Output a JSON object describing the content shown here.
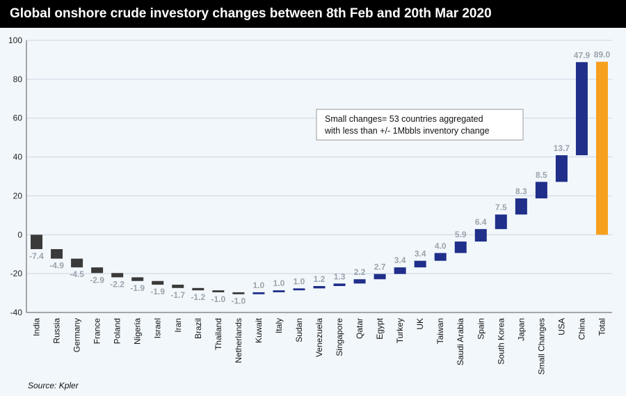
{
  "title": "Global onshore crude investory changes between 8th Feb and 20th Mar 2020",
  "source": "Source: Kpler",
  "chart_data": {
    "type": "waterfall",
    "title": "Global onshore crude investory changes between 8th Feb and 20th Mar 2020",
    "ylim": [
      -40,
      100
    ],
    "yticks": [
      -40,
      -20,
      0,
      20,
      40,
      60,
      80,
      100
    ],
    "grid": true,
    "categories": [
      "India",
      "Russia",
      "Germany",
      "France",
      "Poland",
      "Nigeria",
      "Israel",
      "Iran",
      "Brazil",
      "Thailand",
      "Netherlands",
      "Kuwait",
      "Italy",
      "Sudan",
      "Venezuela",
      "Singapore",
      "Qatar",
      "Egypt",
      "Turkey",
      "UK",
      "Taiwan",
      "Saudi Arabia",
      "Spain",
      "South Korea",
      "Japan",
      "Small Changes",
      "USA",
      "China",
      "Total"
    ],
    "values": [
      -7.4,
      -4.9,
      -4.5,
      -2.9,
      -2.2,
      -1.9,
      -1.9,
      -1.7,
      -1.2,
      -1.0,
      -1.0,
      1.0,
      1.0,
      1.0,
      1.2,
      1.3,
      2.2,
      2.7,
      3.4,
      3.4,
      4.0,
      5.9,
      6.4,
      7.5,
      8.3,
      8.5,
      13.7,
      47.9,
      89.0
    ],
    "value_labels": [
      "-7.4",
      "-4.9",
      "-4.5",
      "-2.9",
      "-2.2",
      "-1.9",
      "-1.9",
      "-1.7",
      "-1.2",
      "-1.0",
      "-1.0",
      "1.0",
      "1.0",
      "1.0",
      "1.2",
      "1.3",
      "2.2",
      "2.7",
      "3.4",
      "3.4",
      "4.0",
      "5.9",
      "6.4",
      "7.5",
      "8.3",
      "8.5",
      "13.7",
      "47.9",
      "89.0"
    ],
    "total_index": 28,
    "annotation": [
      "Small changes= 53 countries aggregated",
      "with less than +/- 1Mbbls inventory change"
    ],
    "colors": {
      "negative": "#3a3a3a",
      "positive": "#1f2f8a",
      "total": "#f7a01e",
      "label": "#9aa3ad",
      "grid": "#c9d6e2"
    }
  }
}
